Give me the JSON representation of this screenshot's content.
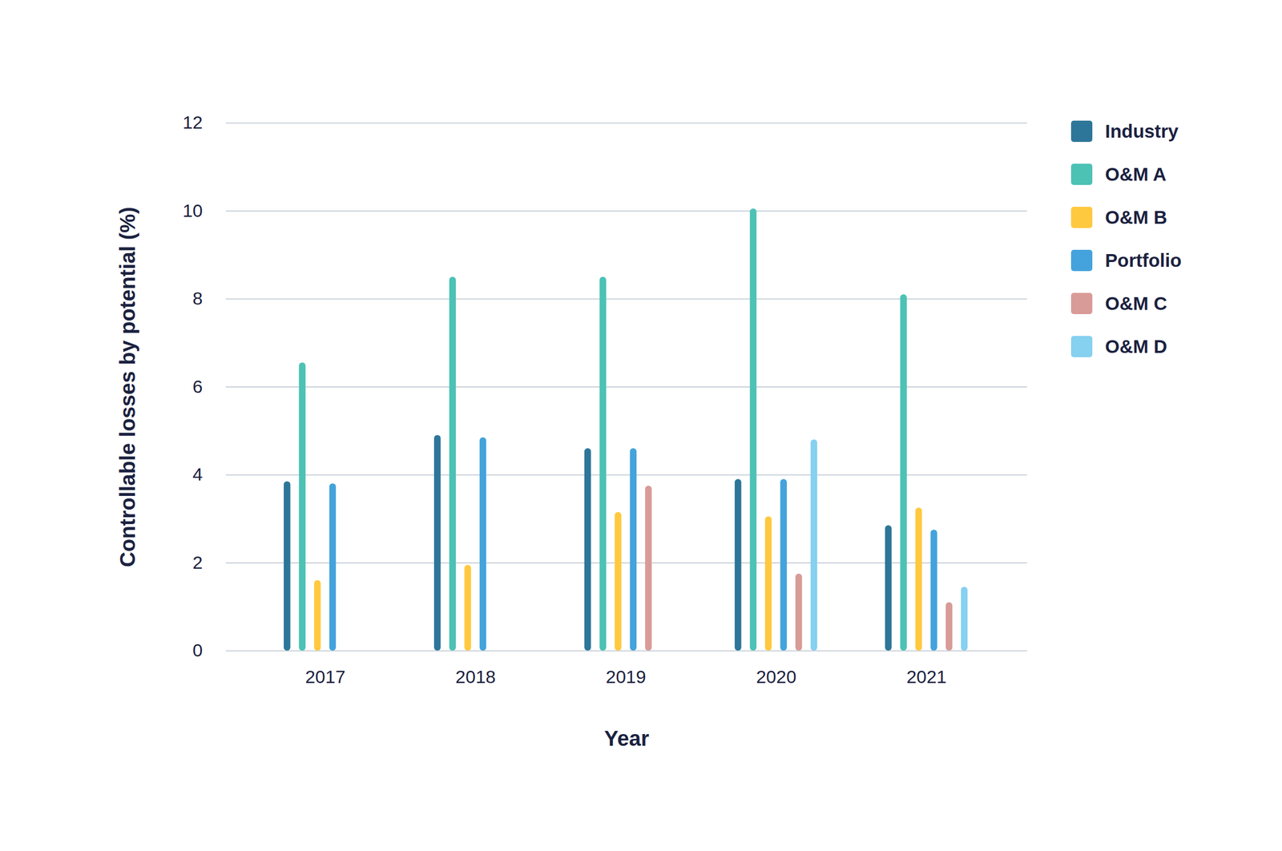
{
  "chart_data": {
    "type": "bar",
    "x_label": "Year",
    "y_label": "Controllable losses by potential (%)",
    "categories": [
      "2017",
      "2018",
      "2019",
      "2020",
      "2021"
    ],
    "series": [
      {
        "name": "Industry",
        "color": "#2e7699",
        "values": [
          3.85,
          4.9,
          4.6,
          3.9,
          2.85
        ]
      },
      {
        "name": "O&M A",
        "color": "#4cc2b5",
        "values": [
          6.55,
          8.5,
          8.5,
          10.05,
          8.1
        ]
      },
      {
        "name": "O&M B",
        "color": "#ffc93f",
        "values": [
          1.6,
          1.95,
          3.15,
          3.05,
          3.25
        ]
      },
      {
        "name": "Portfolio",
        "color": "#44a3dc",
        "values": [
          3.8,
          4.85,
          4.6,
          3.9,
          2.75
        ]
      },
      {
        "name": "O&M C",
        "color": "#d99b98",
        "values": [
          null,
          null,
          3.75,
          1.75,
          1.1
        ]
      },
      {
        "name": "O&M D",
        "color": "#86d0f0",
        "values": [
          null,
          null,
          null,
          4.8,
          1.45
        ]
      }
    ],
    "ylim": [
      0,
      12
    ],
    "yticks": [
      0,
      2,
      4,
      6,
      8,
      10,
      12
    ],
    "grid": true,
    "legend": "right"
  }
}
